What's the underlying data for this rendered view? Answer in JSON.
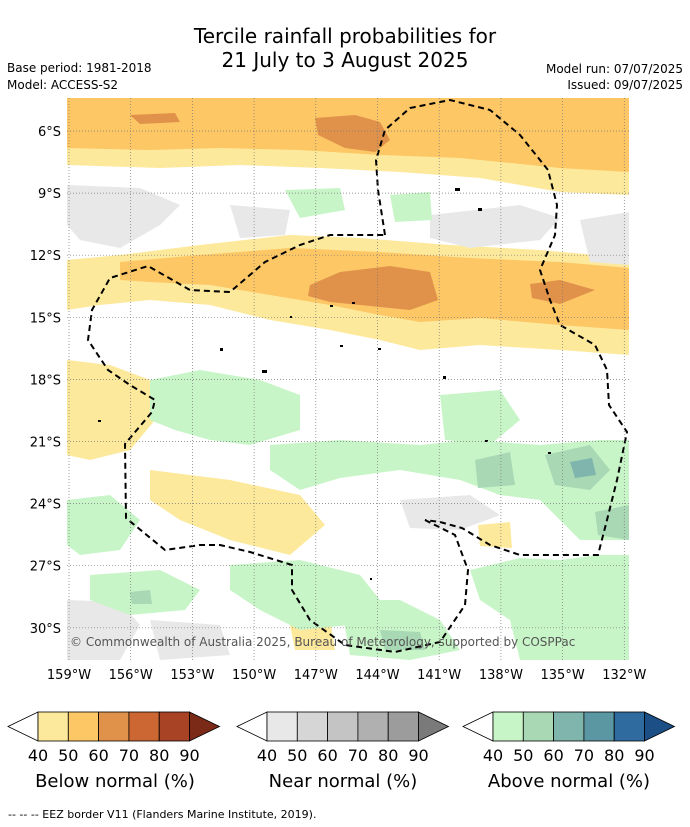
{
  "title": {
    "line1": "Tercile rainfall probabilities for",
    "line2": "21 July to 3 August 2025"
  },
  "meta": {
    "base_period": "Base period: 1981-2018",
    "model": "Model: ACCESS-S2",
    "model_run": "Model run: 07/07/2025",
    "issued": "Issued: 09/07/2025"
  },
  "map": {
    "lat_labels": [
      "6°S",
      "9°S",
      "12°S",
      "15°S",
      "18°S",
      "21°S",
      "24°S",
      "27°S",
      "30°S"
    ],
    "lon_labels": [
      "159°W",
      "156°W",
      "153°W",
      "150°W",
      "147°W",
      "144°W",
      "141°W",
      "138°W",
      "135°W",
      "132°W"
    ],
    "copyright": "© Commonwealth of Australia 2025, Bureau of Meteorology, supported by COSPPac"
  },
  "colorbars": [
    {
      "label": "Below normal (%)",
      "ticks": [
        "40",
        "50",
        "60",
        "70",
        "80",
        "90"
      ],
      "colors": [
        "#ffffff",
        "#fde99b",
        "#fdc766",
        "#e0924a",
        "#cc6633",
        "#a84425",
        "#7a2a17"
      ]
    },
    {
      "label": "Near normal (%)",
      "ticks": [
        "40",
        "50",
        "60",
        "70",
        "80",
        "90"
      ],
      "colors": [
        "#ffffff",
        "#e8e8e8",
        "#d6d6d6",
        "#c4c4c4",
        "#b0b0b0",
        "#9c9c9c",
        "#7a7a7a"
      ]
    },
    {
      "label": "Above normal (%)",
      "ticks": [
        "40",
        "50",
        "60",
        "70",
        "80",
        "90"
      ],
      "colors": [
        "#ffffff",
        "#c8f5c8",
        "#a8d8b4",
        "#7fb5ad",
        "#5b97a2",
        "#2f6b9e",
        "#1b4f86"
      ]
    }
  ],
  "footer": "--  --  -- EEZ border V11 (Flanders Marine Institute, 2019)."
}
